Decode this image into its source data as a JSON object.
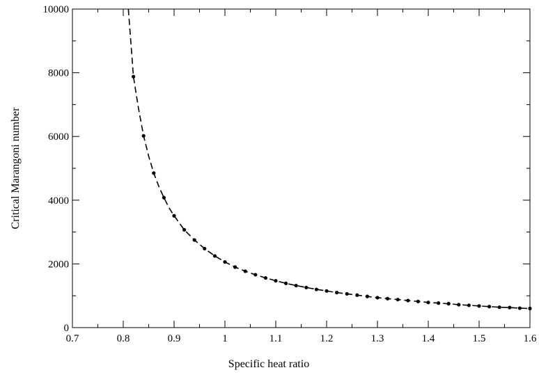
{
  "chart_data": {
    "type": "scatter",
    "title": "",
    "xlabel": "Specific heat ratio",
    "ylabel": "Critical Marangoni number",
    "xlim": [
      0.7,
      1.6
    ],
    "ylim": [
      0,
      10000
    ],
    "x_ticks": [
      0.7,
      0.8,
      0.9,
      1,
      1.1,
      1.2,
      1.3,
      1.4,
      1.5,
      1.6
    ],
    "x_tick_labels": [
      "0.7",
      "0.8",
      "0.9",
      "1",
      "1.1",
      "1.2",
      "1.3",
      "1.4",
      "1.5",
      "1.6"
    ],
    "y_ticks": [
      0,
      2000,
      4000,
      6000,
      8000,
      10000
    ],
    "y_tick_labels": [
      "0",
      "2000",
      "4000",
      "6000",
      "8000",
      "10000"
    ],
    "grid": false,
    "legend": "none",
    "series": [
      {
        "style": "dashed-line",
        "color": "#000000",
        "x": [
          0.81,
          0.815,
          0.82,
          0.83,
          0.84,
          0.85,
          0.86,
          0.87,
          0.88,
          0.89,
          0.9,
          0.92,
          0.94,
          0.96,
          0.98,
          1.0,
          1.02,
          1.04,
          1.06,
          1.08,
          1.1,
          1.12,
          1.14,
          1.16,
          1.18,
          1.2,
          1.22,
          1.24,
          1.26,
          1.28,
          1.3,
          1.32,
          1.34,
          1.36,
          1.38,
          1.4,
          1.42,
          1.44,
          1.46,
          1.48,
          1.5,
          1.52,
          1.54,
          1.56,
          1.58,
          1.6
        ],
        "y": [
          10000,
          8950,
          7880,
          6880,
          6020,
          5380,
          4850,
          4430,
          4080,
          3760,
          3510,
          3070,
          2750,
          2480,
          2250,
          2060,
          1900,
          1770,
          1660,
          1560,
          1470,
          1390,
          1320,
          1260,
          1200,
          1150,
          1100,
          1060,
          1020,
          980,
          940,
          910,
          880,
          850,
          820,
          790,
          770,
          750,
          720,
          700,
          680,
          660,
          640,
          630,
          610,
          600
        ]
      },
      {
        "style": "markers",
        "marker": "circle",
        "color": "#000000",
        "x": [
          0.82,
          0.84,
          0.86,
          0.88,
          0.9,
          0.92,
          0.94,
          0.96,
          0.98,
          1.0,
          1.02,
          1.04,
          1.06,
          1.08,
          1.1,
          1.12,
          1.14,
          1.16,
          1.18,
          1.2,
          1.22,
          1.24,
          1.26,
          1.28,
          1.3,
          1.32,
          1.34,
          1.36,
          1.38,
          1.4,
          1.42,
          1.44,
          1.46,
          1.48,
          1.5,
          1.52,
          1.54,
          1.56,
          1.58,
          1.6
        ],
        "y": [
          7880,
          6020,
          4850,
          4080,
          3510,
          3070,
          2750,
          2480,
          2250,
          2060,
          1900,
          1770,
          1660,
          1560,
          1470,
          1390,
          1320,
          1260,
          1200,
          1150,
          1100,
          1060,
          1020,
          980,
          940,
          910,
          880,
          850,
          820,
          790,
          770,
          750,
          720,
          700,
          680,
          660,
          640,
          630,
          610,
          600
        ]
      }
    ]
  }
}
